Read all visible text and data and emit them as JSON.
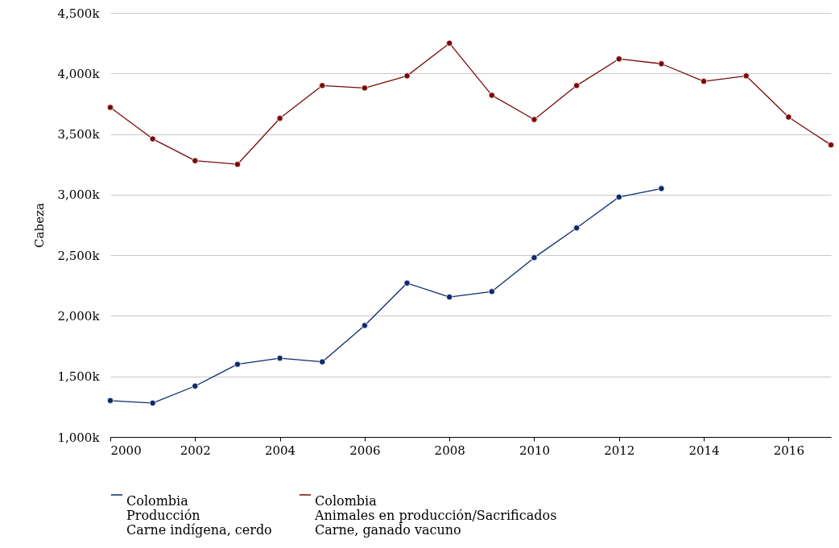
{
  "chart_data": {
    "type": "line",
    "ylabel": "Cabeza",
    "x": [
      2000,
      2001,
      2002,
      2003,
      2004,
      2005,
      2006,
      2007,
      2008,
      2009,
      2010,
      2011,
      2012,
      2013,
      2014,
      2015,
      2016,
      2017
    ],
    "series": [
      {
        "name": "Colombia\nProducción\nCarne indígena, cerdo",
        "color": "#0d2a6e",
        "values": [
          1300000,
          1280000,
          1420000,
          1600000,
          1650000,
          1620000,
          1920000,
          2270000,
          2155000,
          2200000,
          2480000,
          2725000,
          2980000,
          3050000,
          null,
          null,
          null,
          null
        ]
      },
      {
        "name": "Colombia\nAnimales en producción/Sacrificados\nCarne, ganado vacuno",
        "color": "#7a0a0a",
        "values": [
          3720000,
          3460000,
          3280000,
          3250000,
          3630000,
          3900000,
          3880000,
          3980000,
          4250000,
          3820000,
          3620000,
          3900000,
          4120000,
          4080000,
          3935000,
          3980000,
          3640000,
          3410000
        ]
      }
    ],
    "xlim": [
      2000,
      2017
    ],
    "xticks": [
      2000,
      2002,
      2004,
      2006,
      2008,
      2010,
      2012,
      2014,
      2016
    ],
    "ylim": [
      1000000,
      4500000
    ],
    "yticks": [
      {
        "value": 1000000,
        "label": "1,000k"
      },
      {
        "value": 1500000,
        "label": "1,500k"
      },
      {
        "value": 2000000,
        "label": "2,000k"
      },
      {
        "value": 2500000,
        "label": "2,500k"
      },
      {
        "value": 3000000,
        "label": "3,000k"
      },
      {
        "value": 3500000,
        "label": "3,500k"
      },
      {
        "value": 4000000,
        "label": "4,000k"
      },
      {
        "value": 4500000,
        "label": "4,500k"
      }
    ],
    "grid": "y",
    "legend": "bottom",
    "marker": "circle",
    "line_style": "solid"
  }
}
